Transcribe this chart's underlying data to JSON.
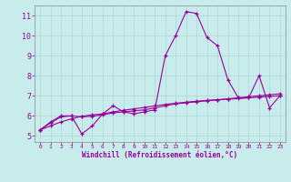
{
  "xlabel": "Windchill (Refroidissement éolien,°C)",
  "bg_color": "#c8ecec",
  "line_color": "#990099",
  "grid_color": "#aed4d4",
  "spine_color": "#888888",
  "x_ticks": [
    0,
    1,
    2,
    3,
    4,
    5,
    6,
    7,
    8,
    9,
    10,
    11,
    12,
    13,
    14,
    15,
    16,
    17,
    18,
    19,
    20,
    21,
    22,
    23
  ],
  "y_ticks": [
    5,
    6,
    7,
    8,
    9,
    10,
    11
  ],
  "ylim": [
    4.7,
    11.5
  ],
  "xlim": [
    -0.5,
    23.5
  ],
  "line1_x": [
    0,
    1,
    2,
    3,
    4,
    5,
    6,
    7,
    8,
    9,
    10,
    11,
    12,
    13,
    14,
    15,
    16,
    17,
    18,
    19,
    20,
    21,
    22,
    23
  ],
  "line1_y": [
    5.3,
    5.7,
    6.0,
    6.0,
    5.1,
    5.5,
    6.1,
    6.5,
    6.2,
    6.1,
    6.2,
    6.3,
    9.0,
    10.0,
    11.2,
    11.1,
    9.9,
    9.5,
    7.8,
    6.9,
    6.9,
    8.0,
    6.4,
    7.0
  ],
  "line2_x": [
    0,
    1,
    2,
    3,
    4,
    5,
    6,
    7,
    8,
    9,
    10,
    11,
    12,
    13,
    14,
    15,
    16,
    17,
    18,
    19,
    20,
    21,
    22,
    23
  ],
  "line2_y": [
    5.3,
    5.65,
    5.95,
    6.0,
    5.95,
    5.98,
    6.05,
    6.15,
    6.2,
    6.25,
    6.3,
    6.4,
    6.5,
    6.6,
    6.65,
    6.7,
    6.75,
    6.8,
    6.85,
    6.9,
    6.95,
    7.0,
    7.05,
    7.1
  ],
  "line3_x": [
    0,
    1,
    2,
    3,
    4,
    5,
    6,
    7,
    8,
    9,
    10,
    11,
    12,
    13,
    14,
    15,
    16,
    17,
    18,
    19,
    20,
    21,
    22,
    23
  ],
  "line3_y": [
    5.3,
    5.5,
    5.7,
    5.85,
    5.98,
    6.05,
    6.1,
    6.2,
    6.28,
    6.35,
    6.42,
    6.5,
    6.57,
    6.63,
    6.68,
    6.73,
    6.77,
    6.8,
    6.83,
    6.86,
    6.9,
    6.93,
    6.97,
    7.0
  ]
}
